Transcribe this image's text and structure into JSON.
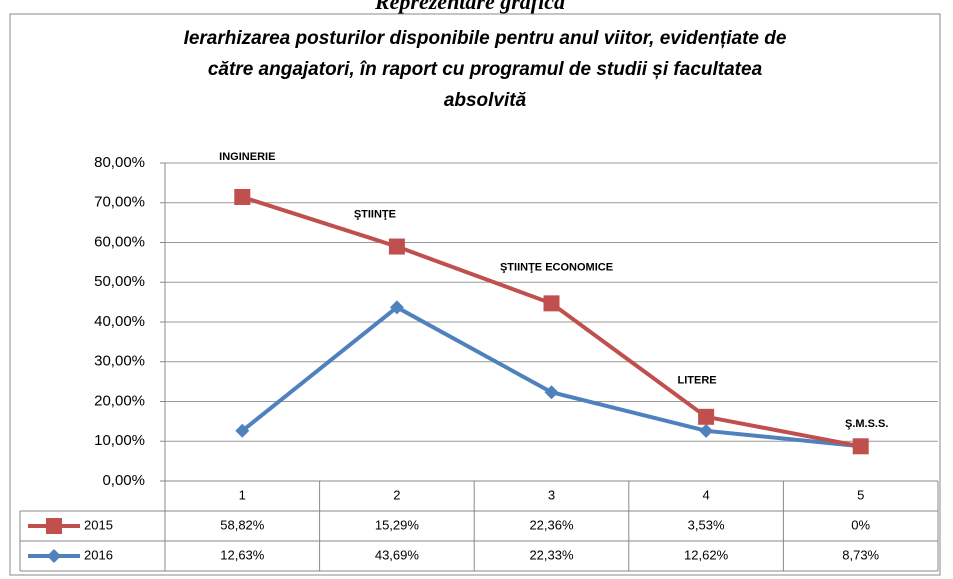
{
  "chart_data": {
    "type": "line",
    "stacked": true,
    "heading": "Reprezentare grafică",
    "title": [
      "Ierarhizarea posturilor disponibile pentru anul viitor, evidențiate de",
      "către angajatori, în raport cu programul de studii și facultatea",
      "absolvită"
    ],
    "categories": [
      "1",
      "2",
      "3",
      "4",
      "5"
    ],
    "series": [
      {
        "name": "2016",
        "color": "#4f81bd",
        "marker": "diamond",
        "values": [
          12.63,
          43.69,
          22.33,
          12.62,
          8.73
        ],
        "value_labels": [
          "12,63%",
          "43,69%",
          "22,33%",
          "12,62%",
          "8,73%"
        ]
      },
      {
        "name": "2015",
        "color": "#c0504d",
        "marker": "square",
        "values": [
          58.82,
          15.29,
          22.36,
          3.53,
          0
        ],
        "value_labels": [
          "58,82%",
          "15,29%",
          "22,36%",
          "3,53%",
          "0%"
        ]
      }
    ],
    "table_order": [
      1,
      0
    ],
    "annotations": [
      "INGINERIE",
      "ŞTIINŢE",
      "ŞTIINŢE ECONOMICE",
      "LITERE",
      "Ş.M.S.S."
    ],
    "ylim": [
      0,
      80
    ],
    "yticks": [
      {
        "value": 0,
        "label": "0,00%"
      },
      {
        "value": 10,
        "label": "10,00%"
      },
      {
        "value": 20,
        "label": "20,00%"
      },
      {
        "value": 30,
        "label": "30,00%"
      },
      {
        "value": 40,
        "label": "40,00%"
      },
      {
        "value": 50,
        "label": "50,00%"
      },
      {
        "value": 60,
        "label": "60,00%"
      },
      {
        "value": 70,
        "label": "70,00%"
      },
      {
        "value": 80,
        "label": "80,00%"
      }
    ],
    "grid": true
  }
}
